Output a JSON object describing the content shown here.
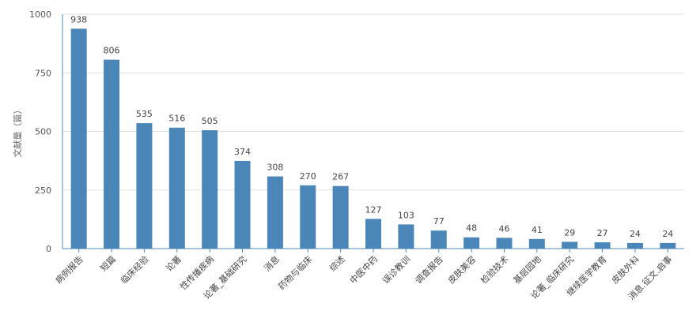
{
  "chart_data": {
    "type": "bar",
    "ylabel": "文献量（篇）",
    "ylim": [
      0,
      1000
    ],
    "yticks": [
      0,
      250,
      500,
      750,
      1000
    ],
    "grid": true,
    "legend": "none",
    "categories": [
      "病例报告",
      "短篇",
      "临床经验",
      "论著",
      "性传播疾病",
      "论著_基础研究",
      "消息",
      "药物与临床",
      "综述",
      "中医中药",
      "误诊教训",
      "调查报告",
      "皮肤美容",
      "检验技术",
      "基层园地",
      "论著_临床研究",
      "继续医学教育",
      "皮肤外科",
      "消息.征文.启事"
    ],
    "values": [
      938,
      806,
      535,
      516,
      505,
      374,
      308,
      270,
      267,
      127,
      103,
      77,
      48,
      46,
      41,
      29,
      27,
      24,
      24
    ],
    "colors": {
      "bar": "#4a86b8",
      "axis": "#4e8ab8",
      "grid": "#e2e2e2"
    }
  }
}
